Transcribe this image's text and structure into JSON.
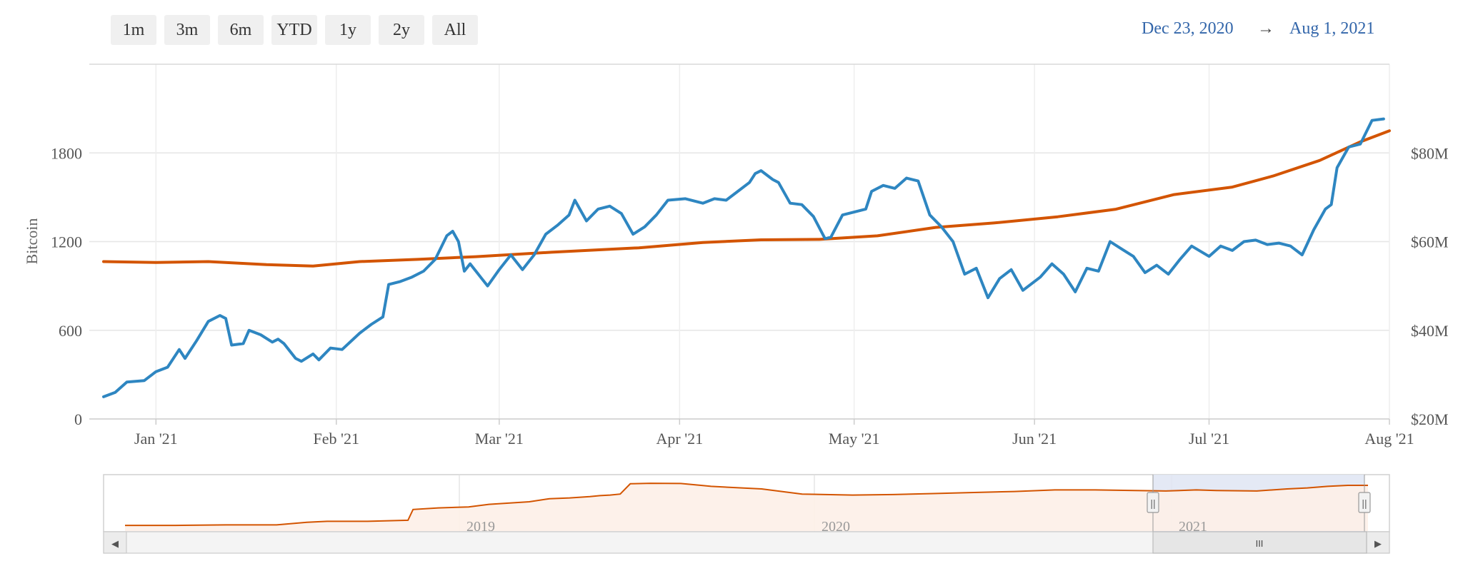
{
  "range_selector": {
    "buttons": [
      "1m",
      "3m",
      "6m",
      "YTD",
      "1y",
      "2y",
      "All"
    ],
    "from": "Dec 23, 2020",
    "arrow": "→",
    "to": "Aug 1, 2021"
  },
  "colors": {
    "holdings": "#2e86c1",
    "value": "#d35400",
    "grid": "#e6e6e6",
    "navigator_selection": "#dfe5f3",
    "navigator_fill": "#fdf0e8"
  },
  "chart_data": {
    "type": "line",
    "x_tick_labels": [
      "Jan '21",
      "Feb '21",
      "Mar '21",
      "Apr '21",
      "May '21",
      "Jun '21",
      "Jul '21",
      "Aug '21"
    ],
    "x_tick_dates": [
      "2021-01-01",
      "2021-02-01",
      "2021-03-01",
      "2021-04-01",
      "2021-05-01",
      "2021-06-01",
      "2021-07-01",
      "2021-08-01"
    ],
    "x_range": [
      "2020-12-23",
      "2021-08-01"
    ],
    "y_left": {
      "label": "Bitcoin",
      "ticks": [
        "0",
        "600",
        "1200",
        "1800"
      ],
      "tick_values": [
        0,
        600,
        1200,
        1800
      ],
      "range": [
        0,
        2400
      ]
    },
    "y_right": {
      "ticks": [
        "$20M",
        "$40M",
        "$60M",
        "$80M"
      ],
      "tick_values": [
        20,
        40,
        60,
        80
      ],
      "unit": "$M",
      "range": [
        20,
        100
      ]
    },
    "grid": true,
    "series": [
      {
        "axis": "left",
        "color": "#2e86c1",
        "points": [
          [
            "2020-12-23",
            150
          ],
          [
            "2020-12-25",
            180
          ],
          [
            "2020-12-27",
            250
          ],
          [
            "2020-12-30",
            260
          ],
          [
            "2021-01-01",
            320
          ],
          [
            "2021-01-03",
            350
          ],
          [
            "2021-01-05",
            470
          ],
          [
            "2021-01-06",
            410
          ],
          [
            "2021-01-08",
            530
          ],
          [
            "2021-01-10",
            660
          ],
          [
            "2021-01-12",
            700
          ],
          [
            "2021-01-13",
            680
          ],
          [
            "2021-01-14",
            500
          ],
          [
            "2021-01-16",
            510
          ],
          [
            "2021-01-17",
            600
          ],
          [
            "2021-01-19",
            570
          ],
          [
            "2021-01-21",
            520
          ],
          [
            "2021-01-22",
            540
          ],
          [
            "2021-01-23",
            510
          ],
          [
            "2021-01-25",
            410
          ],
          [
            "2021-01-26",
            390
          ],
          [
            "2021-01-28",
            440
          ],
          [
            "2021-01-29",
            400
          ],
          [
            "2021-01-31",
            480
          ],
          [
            "2021-02-02",
            470
          ],
          [
            "2021-02-05",
            580
          ],
          [
            "2021-02-07",
            640
          ],
          [
            "2021-02-09",
            690
          ],
          [
            "2021-02-10",
            910
          ],
          [
            "2021-02-12",
            930
          ],
          [
            "2021-02-14",
            960
          ],
          [
            "2021-02-16",
            1000
          ],
          [
            "2021-02-18",
            1080
          ],
          [
            "2021-02-20",
            1240
          ],
          [
            "2021-02-21",
            1270
          ],
          [
            "2021-02-22",
            1200
          ],
          [
            "2021-02-23",
            1000
          ],
          [
            "2021-02-24",
            1050
          ],
          [
            "2021-02-26",
            950
          ],
          [
            "2021-02-27",
            900
          ],
          [
            "2021-03-01",
            1010
          ],
          [
            "2021-03-03",
            1110
          ],
          [
            "2021-03-05",
            1010
          ],
          [
            "2021-03-07",
            1110
          ],
          [
            "2021-03-09",
            1250
          ],
          [
            "2021-03-11",
            1310
          ],
          [
            "2021-03-13",
            1380
          ],
          [
            "2021-03-14",
            1480
          ],
          [
            "2021-03-16",
            1340
          ],
          [
            "2021-03-18",
            1420
          ],
          [
            "2021-03-20",
            1440
          ],
          [
            "2021-03-22",
            1390
          ],
          [
            "2021-03-24",
            1250
          ],
          [
            "2021-03-26",
            1300
          ],
          [
            "2021-03-28",
            1380
          ],
          [
            "2021-03-30",
            1480
          ],
          [
            "2021-04-02",
            1490
          ],
          [
            "2021-04-05",
            1460
          ],
          [
            "2021-04-07",
            1490
          ],
          [
            "2021-04-09",
            1480
          ],
          [
            "2021-04-11",
            1540
          ],
          [
            "2021-04-13",
            1600
          ],
          [
            "2021-04-14",
            1660
          ],
          [
            "2021-04-15",
            1680
          ],
          [
            "2021-04-17",
            1620
          ],
          [
            "2021-04-18",
            1600
          ],
          [
            "2021-04-20",
            1460
          ],
          [
            "2021-04-22",
            1450
          ],
          [
            "2021-04-24",
            1370
          ],
          [
            "2021-04-26",
            1220
          ],
          [
            "2021-04-27",
            1230
          ],
          [
            "2021-04-29",
            1380
          ],
          [
            "2021-05-01",
            1400
          ],
          [
            "2021-05-03",
            1420
          ],
          [
            "2021-05-04",
            1540
          ],
          [
            "2021-05-06",
            1580
          ],
          [
            "2021-05-08",
            1560
          ],
          [
            "2021-05-10",
            1630
          ],
          [
            "2021-05-12",
            1610
          ],
          [
            "2021-05-14",
            1380
          ],
          [
            "2021-05-16",
            1300
          ],
          [
            "2021-05-18",
            1200
          ],
          [
            "2021-05-20",
            980
          ],
          [
            "2021-05-22",
            1020
          ],
          [
            "2021-05-24",
            820
          ],
          [
            "2021-05-26",
            950
          ],
          [
            "2021-05-28",
            1010
          ],
          [
            "2021-05-30",
            870
          ],
          [
            "2021-06-02",
            960
          ],
          [
            "2021-06-04",
            1050
          ],
          [
            "2021-06-06",
            980
          ],
          [
            "2021-06-08",
            860
          ],
          [
            "2021-06-10",
            1020
          ],
          [
            "2021-06-12",
            1000
          ],
          [
            "2021-06-14",
            1200
          ],
          [
            "2021-06-16",
            1150
          ],
          [
            "2021-06-18",
            1100
          ],
          [
            "2021-06-20",
            990
          ],
          [
            "2021-06-22",
            1040
          ],
          [
            "2021-06-24",
            980
          ],
          [
            "2021-06-26",
            1080
          ],
          [
            "2021-06-28",
            1170
          ],
          [
            "2021-07-01",
            1100
          ],
          [
            "2021-07-03",
            1170
          ],
          [
            "2021-07-05",
            1140
          ],
          [
            "2021-07-07",
            1200
          ],
          [
            "2021-07-09",
            1210
          ],
          [
            "2021-07-11",
            1180
          ],
          [
            "2021-07-13",
            1190
          ],
          [
            "2021-07-15",
            1170
          ],
          [
            "2021-07-17",
            1110
          ],
          [
            "2021-07-19",
            1280
          ],
          [
            "2021-07-21",
            1420
          ],
          [
            "2021-07-22",
            1450
          ],
          [
            "2021-07-23",
            1700
          ],
          [
            "2021-07-25",
            1840
          ],
          [
            "2021-07-27",
            1860
          ],
          [
            "2021-07-29",
            2020
          ],
          [
            "2021-07-31",
            2030
          ]
        ]
      },
      {
        "axis": "right",
        "color": "#d35400",
        "points": [
          [
            "2020-12-23",
            55.5
          ],
          [
            "2021-01-01",
            55.3
          ],
          [
            "2021-01-10",
            55.5
          ],
          [
            "2021-01-20",
            54.8
          ],
          [
            "2021-01-28",
            54.5
          ],
          [
            "2021-02-05",
            55.5
          ],
          [
            "2021-02-15",
            56.0
          ],
          [
            "2021-02-25",
            56.6
          ],
          [
            "2021-03-10",
            57.6
          ],
          [
            "2021-03-25",
            58.6
          ],
          [
            "2021-04-05",
            59.8
          ],
          [
            "2021-04-15",
            60.4
          ],
          [
            "2021-04-25",
            60.5
          ],
          [
            "2021-05-05",
            61.3
          ],
          [
            "2021-05-15",
            63.2
          ],
          [
            "2021-05-25",
            64.2
          ],
          [
            "2021-06-05",
            65.6
          ],
          [
            "2021-06-15",
            67.3
          ],
          [
            "2021-06-25",
            70.6
          ],
          [
            "2021-07-05",
            72.3
          ],
          [
            "2021-07-12",
            74.8
          ],
          [
            "2021-07-20",
            78.3
          ],
          [
            "2021-07-27",
            82.5
          ],
          [
            "2021-08-01",
            85.0
          ]
        ]
      }
    ]
  },
  "navigator": {
    "year_labels": [
      "2019",
      "2020",
      "2021"
    ],
    "left_arrow": "◀",
    "right_arrow": "▶",
    "thumb_grip": "III",
    "handle_grip": "||",
    "history": [
      [
        0,
        4
      ],
      [
        5,
        4
      ],
      [
        10,
        5
      ],
      [
        15,
        5
      ],
      [
        18,
        10
      ],
      [
        20,
        12
      ],
      [
        24,
        12
      ],
      [
        28,
        14
      ],
      [
        28.5,
        35
      ],
      [
        31,
        38
      ],
      [
        34,
        40
      ],
      [
        36,
        45
      ],
      [
        40,
        50
      ],
      [
        42,
        56
      ],
      [
        44,
        57.5
      ],
      [
        46,
        60
      ],
      [
        47,
        62
      ],
      [
        48,
        63
      ],
      [
        49,
        65
      ],
      [
        50,
        85
      ],
      [
        52,
        86
      ],
      [
        55,
        85.5
      ],
      [
        57,
        82
      ],
      [
        58,
        80
      ],
      [
        63,
        75
      ],
      [
        67,
        65
      ],
      [
        72,
        63
      ],
      [
        76,
        64
      ],
      [
        80,
        66
      ],
      [
        84,
        68
      ],
      [
        88,
        70
      ],
      [
        92,
        73
      ],
      [
        96,
        73
      ],
      [
        100,
        72
      ],
      [
        103,
        71
      ],
      [
        106,
        73
      ],
      [
        108,
        72
      ],
      [
        112,
        71
      ],
      [
        115,
        75
      ],
      [
        117,
        77
      ],
      [
        119,
        80
      ],
      [
        121,
        82
      ],
      [
        123,
        82
      ]
    ]
  }
}
